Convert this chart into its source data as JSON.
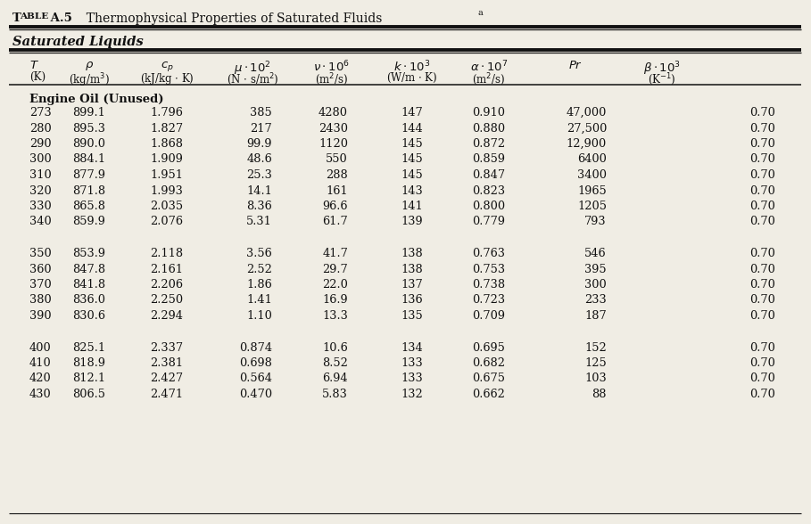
{
  "bg_color": "#f0ede4",
  "text_color": "#111111",
  "line_color": "#111111",
  "title_small": "Table A.5",
  "title_rest": "  Thermophysical Properties of Saturated Fluids",
  "subtitle": "Saturated Liquids",
  "fluid_label": "Engine Oil (Unused)",
  "data_group1": [
    [
      "273",
      "899.1",
      "1.796",
      "385",
      "4280",
      "147",
      "0.910",
      "47,000",
      "0.70"
    ],
    [
      "280",
      "895.3",
      "1.827",
      "217",
      "2430",
      "144",
      "0.880",
      "27,500",
      "0.70"
    ],
    [
      "290",
      "890.0",
      "1.868",
      "99.9",
      "1120",
      "145",
      "0.872",
      "12,900",
      "0.70"
    ],
    [
      "300",
      "884.1",
      "1.909",
      "48.6",
      "550",
      "145",
      "0.859",
      "6400",
      "0.70"
    ],
    [
      "310",
      "877.9",
      "1.951",
      "25.3",
      "288",
      "145",
      "0.847",
      "3400",
      "0.70"
    ],
    [
      "320",
      "871.8",
      "1.993",
      "14.1",
      "161",
      "143",
      "0.823",
      "1965",
      "0.70"
    ],
    [
      "330",
      "865.8",
      "2.035",
      "8.36",
      "96.6",
      "141",
      "0.800",
      "1205",
      "0.70"
    ],
    [
      "340",
      "859.9",
      "2.076",
      "5.31",
      "61.7",
      "139",
      "0.779",
      "793",
      "0.70"
    ]
  ],
  "data_group2": [
    [
      "350",
      "853.9",
      "2.118",
      "3.56",
      "41.7",
      "138",
      "0.763",
      "546",
      "0.70"
    ],
    [
      "360",
      "847.8",
      "2.161",
      "2.52",
      "29.7",
      "138",
      "0.753",
      "395",
      "0.70"
    ],
    [
      "370",
      "841.8",
      "2.206",
      "1.86",
      "22.0",
      "137",
      "0.738",
      "300",
      "0.70"
    ],
    [
      "380",
      "836.0",
      "2.250",
      "1.41",
      "16.9",
      "136",
      "0.723",
      "233",
      "0.70"
    ],
    [
      "390",
      "830.6",
      "2.294",
      "1.10",
      "13.3",
      "135",
      "0.709",
      "187",
      "0.70"
    ]
  ],
  "data_group3": [
    [
      "400",
      "825.1",
      "2.337",
      "0.874",
      "10.6",
      "134",
      "0.695",
      "152",
      "0.70"
    ],
    [
      "410",
      "818.9",
      "2.381",
      "0.698",
      "8.52",
      "133",
      "0.682",
      "125",
      "0.70"
    ],
    [
      "420",
      "812.1",
      "2.427",
      "0.564",
      "6.94",
      "133",
      "0.675",
      "103",
      "0.70"
    ],
    [
      "430",
      "806.5",
      "2.471",
      "0.470",
      "5.83",
      "132",
      "0.662",
      "88",
      "0.70"
    ]
  ]
}
